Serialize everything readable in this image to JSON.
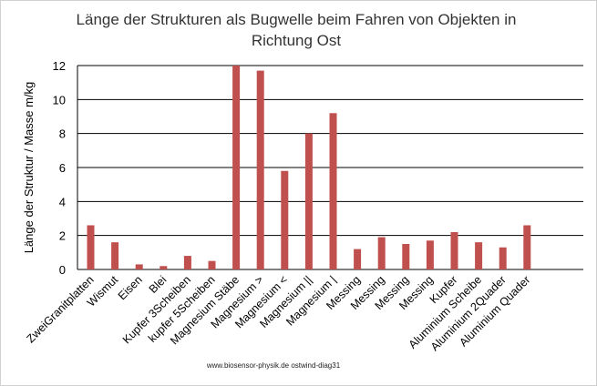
{
  "chart_data": {
    "type": "bar",
    "title": [
      "Länge der Strukturen als Bugwelle beim Fahren von Objekten in",
      "Richtung Ost"
    ],
    "ylabel": "Länge der Struktur / Masse  m/kg",
    "xlabel": "",
    "ylim": [
      0,
      12
    ],
    "yticks": [
      0,
      2,
      4,
      6,
      8,
      10,
      12
    ],
    "grid": true,
    "bar_color": "#c0504d",
    "categories": [
      "ZweiGranitplatten",
      "Wismut",
      "Eisen",
      "Blei",
      "Kupfer 3Scheiben",
      "kupfer 5Scheiben",
      "Magnesium Stäbe",
      "Magnesium >",
      "Magnesium <",
      "Magnesium ||",
      "Magnesium |",
      "Messing",
      "Messing",
      "Messing",
      "Messing",
      "Kupfer",
      "Aluminium Scheibe",
      "Aluminium 2Quader",
      "Aluminium Quader"
    ],
    "values": [
      2.6,
      1.6,
      0.3,
      0.2,
      0.8,
      0.5,
      12.0,
      11.7,
      5.8,
      8.0,
      9.2,
      1.2,
      1.9,
      1.5,
      1.7,
      2.2,
      1.6,
      1.3,
      2.6
    ]
  },
  "footer": "www.biosensor-physik.de  ostwind-diag31"
}
